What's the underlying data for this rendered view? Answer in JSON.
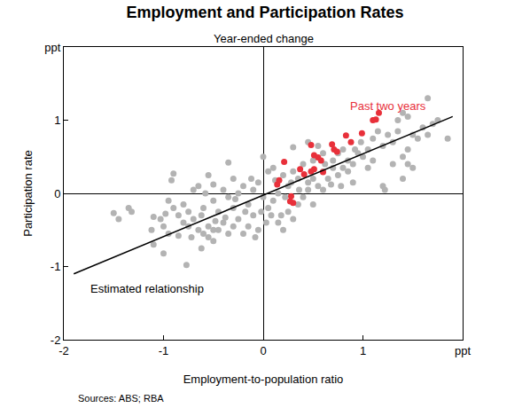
{
  "chart_data": {
    "type": "scatter",
    "title": "Employment and Participation Rates",
    "subtitle": "Year-ended change",
    "x_label": "Employment-to-population ratio",
    "y_label": "Participation rate",
    "source": "Sources: ABS; RBA",
    "xlim": [
      -2,
      2
    ],
    "ylim": [
      -2,
      2
    ],
    "xticks": [
      -2,
      -1,
      0,
      1,
      {
        "value": 2,
        "label": "ppt"
      }
    ],
    "yticks": [
      -2,
      -1,
      0,
      1,
      {
        "value": 2,
        "label": "ppt"
      }
    ],
    "grid": false,
    "series": [
      {
        "type": "scatter",
        "color": "#b3b3b3",
        "marker": "circle",
        "x": [
          -1.5,
          -1.35,
          -1.32,
          -1.45,
          -1.1,
          -1.0,
          -1.1,
          -0.95,
          -1.0,
          -1.03,
          -1.12,
          -0.98,
          -0.95,
          -0.9,
          -0.92,
          -0.77,
          -0.8,
          -0.75,
          -0.85,
          -0.7,
          -0.65,
          -0.6,
          -0.55,
          -0.5,
          -0.62,
          -0.6,
          -0.7,
          -0.65,
          -0.58,
          -0.5,
          -0.45,
          -0.4,
          -0.35,
          -0.3,
          -0.25,
          -0.3,
          -0.35,
          -0.4,
          -0.5,
          -0.55,
          -0.3,
          -0.35,
          -0.2,
          -0.25,
          -0.15,
          -0.1,
          -0.05,
          -0.08,
          -0.15,
          -0.2,
          -0.12,
          -0.05,
          -0.1,
          0.0,
          0.05,
          0.03,
          0.08,
          0.1,
          0.05,
          0.0,
          0.1,
          0.15,
          0.2,
          0.22,
          0.25,
          0.18,
          0.25,
          0.3,
          0.35,
          0.4,
          0.3,
          0.35,
          0.4,
          0.45,
          0.5,
          0.45,
          0.55,
          0.5,
          0.6,
          0.6,
          0.65,
          0.7,
          0.75,
          0.8,
          0.7,
          0.75,
          0.8,
          0.85,
          0.9,
          0.85,
          0.9,
          0.95,
          1.0,
          1.05,
          0.98,
          1.1,
          1.15,
          1.2,
          1.25,
          1.3,
          1.35,
          1.3,
          1.4,
          1.45,
          1.5,
          1.4,
          1.45,
          1.5,
          1.55,
          1.6,
          1.65,
          1.7,
          1.75,
          1.65,
          1.85,
          1.4,
          1.45,
          1.35,
          1.2,
          1.22,
          0.3,
          0.5,
          0.6,
          0.55,
          0.45,
          -0.8,
          -0.85,
          -0.9,
          -0.75,
          -0.45,
          -0.55,
          -0.38,
          -0.48,
          -0.28,
          -0.18,
          0.12,
          0.28,
          0.36,
          0.62,
          0.68,
          0.78,
          1.05,
          1.1,
          0.92,
          0.15,
          0.2,
          -0.02,
          -0.5,
          -0.72,
          -0.62
        ],
        "y": [
          -0.27,
          -0.2,
          -0.25,
          -0.35,
          -0.32,
          -0.82,
          -0.7,
          -0.55,
          -0.45,
          -0.35,
          -0.5,
          -0.28,
          -0.1,
          0.27,
          0.18,
          -0.98,
          -0.4,
          -0.45,
          -0.58,
          -0.35,
          -0.5,
          -0.55,
          -0.6,
          -0.65,
          -0.3,
          -0.2,
          0.05,
          0.1,
          0.0,
          -0.1,
          -0.25,
          -0.4,
          -0.55,
          -0.45,
          -0.35,
          -0.2,
          -0.05,
          0.05,
          0.12,
          0.25,
          0.2,
          0.42,
          0.1,
          0.0,
          -0.15,
          -0.3,
          -0.5,
          -0.6,
          -0.45,
          -0.55,
          0.2,
          0.15,
          0.05,
          -0.05,
          -0.2,
          -0.4,
          -0.3,
          -0.1,
          0.3,
          0.5,
          0.35,
          0.0,
          0.25,
          -0.05,
          0.1,
          -0.3,
          -0.25,
          -0.35,
          -0.15,
          -0.05,
          0.3,
          0.2,
          0.4,
          0.15,
          0.2,
          0.05,
          0.1,
          -0.15,
          0.05,
          0.3,
          0.2,
          0.35,
          0.25,
          0.35,
          0.45,
          0.55,
          0.6,
          0.45,
          0.4,
          0.3,
          0.15,
          0.55,
          0.5,
          0.6,
          0.7,
          0.75,
          0.85,
          0.65,
          0.8,
          0.7,
          0.85,
          0.4,
          0.5,
          0.4,
          0.35,
          0.2,
          0.6,
          0.8,
          0.75,
          0.9,
          0.8,
          0.95,
          1.0,
          1.3,
          0.75,
          1.1,
          1.05,
          1.0,
          0.1,
          0.05,
          0.63,
          0.45,
          0.55,
          0.65,
          0.7,
          -0.15,
          -0.3,
          -0.2,
          -0.25,
          -0.5,
          -0.45,
          -0.33,
          -0.38,
          -0.08,
          -0.25,
          0.18,
          0.15,
          0.05,
          0.4,
          0.12,
          0.1,
          0.35,
          0.45,
          0.6,
          -0.4,
          -0.5,
          -0.25,
          -0.5,
          -0.6,
          -0.75
        ]
      },
      {
        "type": "scatter",
        "color": "#e8303a",
        "marker": "circle",
        "x": [
          0.21,
          0.37,
          0.48,
          0.51,
          0.55,
          0.58,
          0.51,
          0.6,
          0.69,
          0.71,
          0.74,
          0.83,
          0.88,
          0.99,
          1.1,
          1.13,
          1.16,
          0.14,
          0.16,
          0.28,
          0.3,
          0.27,
          0.41,
          0.48
        ],
        "y": [
          0.43,
          0.33,
          0.66,
          0.52,
          0.49,
          0.45,
          0.33,
          0.29,
          0.67,
          0.6,
          0.57,
          0.79,
          0.7,
          0.82,
          1.0,
          1.01,
          1.1,
          0.12,
          0.18,
          -0.04,
          -0.13,
          -0.11,
          0.26,
          0.3
        ]
      },
      {
        "type": "line",
        "color": "#000000",
        "line_style": "solid",
        "x": [
          -1.9,
          1.9
        ],
        "y": [
          -1.1,
          1.05
        ]
      }
    ],
    "annotations": [
      {
        "text": "Past two years",
        "x": 0.85,
        "y": 1.2,
        "color": "#e8303a"
      },
      {
        "text": "Estimated relationship",
        "x": -1.75,
        "y": -1.3,
        "color": "#000000"
      }
    ]
  }
}
